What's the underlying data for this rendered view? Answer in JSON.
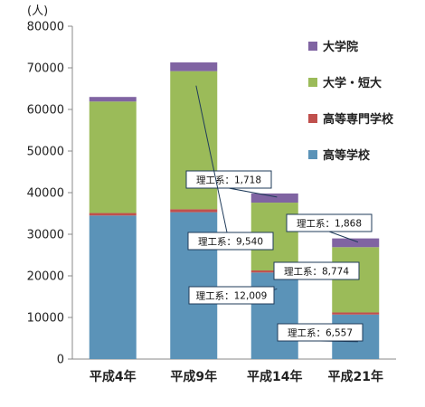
{
  "chart_data": {
    "type": "bar",
    "stacked": true,
    "unit_label": "(人)",
    "ylim": [
      0,
      80000
    ],
    "yticks": [
      "0",
      "10000",
      "20000",
      "30000",
      "40000",
      "50000",
      "60000",
      "70000",
      "80000"
    ],
    "categories": [
      "平成4年",
      "平成9年",
      "平成14年",
      "平成21年"
    ],
    "series": [
      {
        "name": "高等学校",
        "color": "#5b93b8",
        "values": [
          34500,
          35300,
          20800,
          10700
        ]
      },
      {
        "name": "高等専門学校",
        "color": "#c0504d",
        "values": [
          600,
          700,
          500,
          500
        ]
      },
      {
        "name": "大学・短大",
        "color": "#9bbb59",
        "values": [
          26800,
          33200,
          16300,
          15700
        ]
      },
      {
        "name": "大学院",
        "color": "#8064a2",
        "values": [
          1100,
          2100,
          2200,
          2100
        ]
      }
    ],
    "annotations": [
      {
        "text": "理工系：1,718",
        "bar": 2,
        "segment": 3
      },
      {
        "text": "理工系：9,540",
        "bar": 1,
        "segment": 2
      },
      {
        "text": "理工系：12,009",
        "bar": 2,
        "segment": 0
      },
      {
        "text": "理工系：1,868",
        "bar": 3,
        "segment": 3
      },
      {
        "text": "理工系：8,774",
        "bar": 3,
        "segment": 2
      },
      {
        "text": "理工系：6,557",
        "bar": 3,
        "segment": 0
      }
    ],
    "legend_position": "right",
    "grid": false
  }
}
